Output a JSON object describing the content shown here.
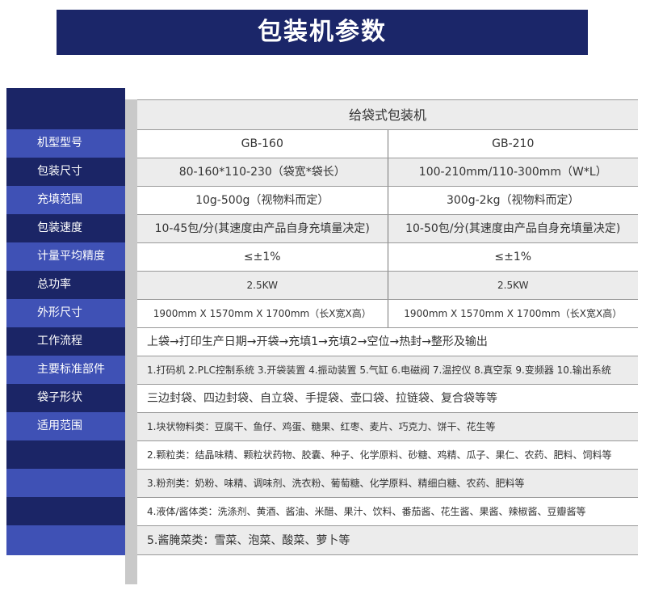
{
  "title": "包装机参数",
  "header": "给袋式包装机",
  "rows": [
    {
      "label": "机型型号",
      "c1": "GB-160",
      "c2": "GB-210"
    },
    {
      "label": "包装尺寸",
      "c1": "80-160*110-230（袋宽*袋长）",
      "c2": "100-210mm/110-300mm（W*L）"
    },
    {
      "label": "充填范围",
      "c1": "10g-500g（视物料而定）",
      "c2": "300g-2kg（视物料而定）"
    },
    {
      "label": "包装速度",
      "c1": "10-45包/分(其速度由产品自身充填量决定)",
      "c2": "10-50包/分(其速度由产品自身充填量决定)"
    },
    {
      "label": "计量平均精度",
      "c1": "≤±1%",
      "c2": "≤±1%"
    },
    {
      "label": "总功率",
      "c1": "2.5KW",
      "c2": "2.5KW"
    },
    {
      "label": "外形尺寸",
      "c1": "1900mm X 1570mm X 1700mm（长X宽X高）",
      "c2": "1900mm X 1570mm X 1700mm（长X宽X高）"
    }
  ],
  "full_rows": [
    {
      "label": "工作流程",
      "text": "上袋→打印生产日期→开袋→充填1→充填2→空位→热封→整形及输出"
    },
    {
      "label": "主要标准部件",
      "text": "1.打码机 2.PLC控制系统 3.开袋装置 4.振动装置 5.气缸 6.电磁阀 7.温控仪 8.真空泵 9.变频器 10.输出系统"
    },
    {
      "label": "袋子形状",
      "text": "三边封袋、四边封袋、自立袋、手提袋、壶口袋、拉链袋、复合袋等等"
    },
    {
      "label": "适用范围",
      "text": "1.块状物料类：豆腐干、鱼仔、鸡蛋、糖果、红枣、麦片、巧克力、饼干、花生等"
    },
    {
      "label": "",
      "text": "2.颗粒类：结晶味精、颗粒状药物、胶囊、种子、化学原料、砂糖、鸡精、瓜子、果仁、农药、肥料、饲料等"
    },
    {
      "label": "",
      "text": "3.粉剂类：奶粉、味精、调味剂、洗衣粉、葡萄糖、化学原料、精细白糖、农药、肥料等"
    },
    {
      "label": "",
      "text": "4.液体/酱体类：洗涤剂、黄酒、酱油、米醋、果汁、饮料、番茄酱、花生酱、果酱、辣椒酱、豆瓣酱等"
    },
    {
      "label": "",
      "text": "5.酱腌菜类：雪菜、泡菜、酸菜、萝卜等"
    }
  ]
}
